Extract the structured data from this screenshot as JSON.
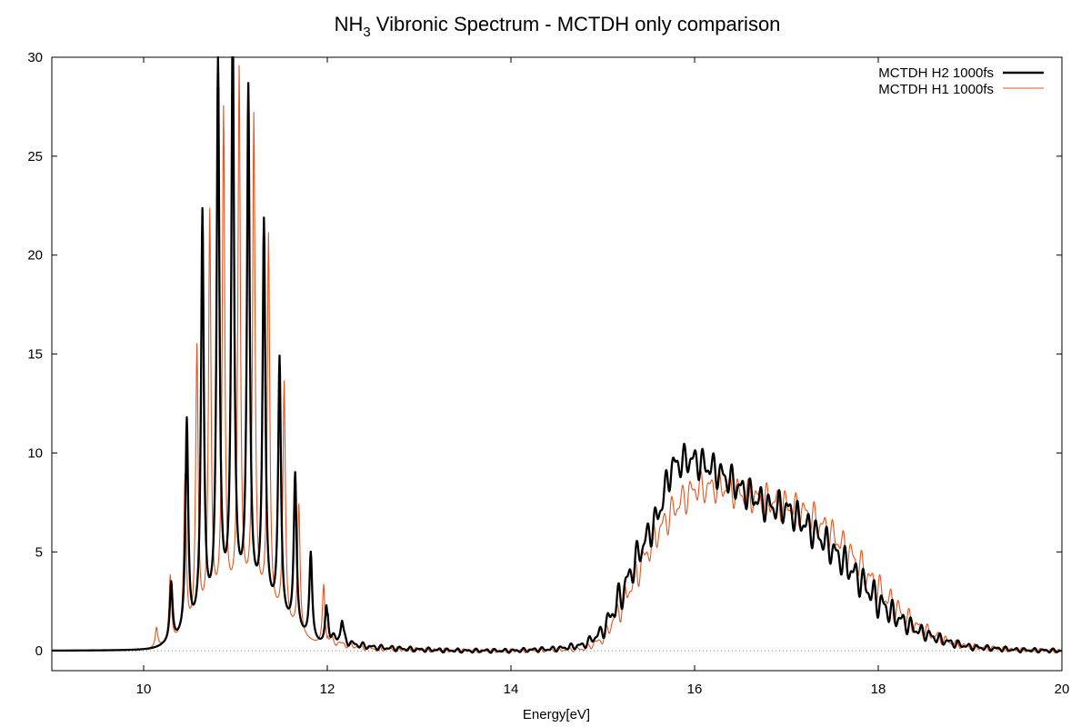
{
  "chart_data": {
    "type": "line",
    "title_main": "NH",
    "title_sub": "3",
    "title_rest": " Vibronic Spectrum - MCTDH only comparison",
    "xlabel": "Energy[eV]",
    "ylabel": "",
    "xlim": [
      9,
      20
    ],
    "ylim": [
      -1,
      30
    ],
    "xticks": [
      10,
      12,
      14,
      16,
      18,
      20
    ],
    "yticks": [
      0,
      5,
      10,
      15,
      20,
      25,
      30
    ],
    "xtick_labels": [
      "10",
      "12",
      "14",
      "16",
      "18",
      "20"
    ],
    "ytick_labels": [
      "0",
      "5",
      "10",
      "15",
      "20",
      "25",
      "30"
    ],
    "grid": false,
    "zero_line": true,
    "legend_position": "top-right",
    "series": [
      {
        "name": "MCTDH H2 1000fs",
        "color": "#000000",
        "peaks": [
          [
            10.3,
            3.0
          ],
          [
            10.47,
            10.8
          ],
          [
            10.64,
            20.7
          ],
          [
            10.81,
            27.9
          ],
          [
            10.97,
            29.4
          ],
          [
            11.14,
            25.8
          ],
          [
            11.31,
            19.4
          ],
          [
            11.48,
            13.1
          ],
          [
            11.65,
            7.9
          ],
          [
            11.82,
            4.4
          ],
          [
            11.99,
            2.0
          ],
          [
            12.16,
            1.1
          ]
        ],
        "broad": [
          [
            12.0,
            0.4
          ],
          [
            12.5,
            0.15
          ],
          [
            13.0,
            0.05
          ],
          [
            13.5,
            0.0
          ],
          [
            14.0,
            0.0
          ],
          [
            14.5,
            0.1
          ],
          [
            14.8,
            0.3
          ],
          [
            15.0,
            1.0
          ],
          [
            15.2,
            2.8
          ],
          [
            15.4,
            5.0
          ],
          [
            15.6,
            6.8
          ],
          [
            15.75,
            9.3
          ],
          [
            15.95,
            9.7
          ],
          [
            16.2,
            9.2
          ],
          [
            16.5,
            8.2
          ],
          [
            16.8,
            7.3
          ],
          [
            17.0,
            7.2
          ],
          [
            17.2,
            6.4
          ],
          [
            17.4,
            5.6
          ],
          [
            17.6,
            4.6
          ],
          [
            17.8,
            3.6
          ],
          [
            18.0,
            2.5
          ],
          [
            18.2,
            1.7
          ],
          [
            18.4,
            1.1
          ],
          [
            18.6,
            0.7
          ],
          [
            18.8,
            0.4
          ],
          [
            19.0,
            0.2
          ],
          [
            19.5,
            0.05
          ],
          [
            20.0,
            0.0
          ]
        ]
      },
      {
        "name": "MCTDH H1 1000fs",
        "color": "#e8541b",
        "peaks": [
          [
            10.14,
            1.0
          ],
          [
            10.29,
            3.4
          ],
          [
            10.45,
            8.0
          ],
          [
            10.58,
            14.1
          ],
          [
            10.72,
            20.4
          ],
          [
            10.87,
            25.1
          ],
          [
            11.04,
            26.8
          ],
          [
            11.2,
            24.5
          ],
          [
            11.36,
            18.9
          ],
          [
            11.53,
            12.1
          ],
          [
            11.69,
            6.5
          ],
          [
            11.96,
            3.1
          ]
        ],
        "broad": [
          [
            12.0,
            0.3
          ],
          [
            12.5,
            0.1
          ],
          [
            13.0,
            0.05
          ],
          [
            13.5,
            0.0
          ],
          [
            14.0,
            0.0
          ],
          [
            14.5,
            0.05
          ],
          [
            14.8,
            0.1
          ],
          [
            15.0,
            0.6
          ],
          [
            15.2,
            2.3
          ],
          [
            15.4,
            4.2
          ],
          [
            15.6,
            6.0
          ],
          [
            15.8,
            7.3
          ],
          [
            16.0,
            8.2
          ],
          [
            16.3,
            8.3
          ],
          [
            16.6,
            7.8
          ],
          [
            16.9,
            7.5
          ],
          [
            17.2,
            7.0
          ],
          [
            17.4,
            6.3
          ],
          [
            17.6,
            5.4
          ],
          [
            17.8,
            4.3
          ],
          [
            18.0,
            3.1
          ],
          [
            18.2,
            2.1
          ],
          [
            18.4,
            1.3
          ],
          [
            18.6,
            0.8
          ],
          [
            18.8,
            0.4
          ],
          [
            19.0,
            0.2
          ],
          [
            19.5,
            0.05
          ],
          [
            20.0,
            0.0
          ]
        ]
      }
    ]
  }
}
